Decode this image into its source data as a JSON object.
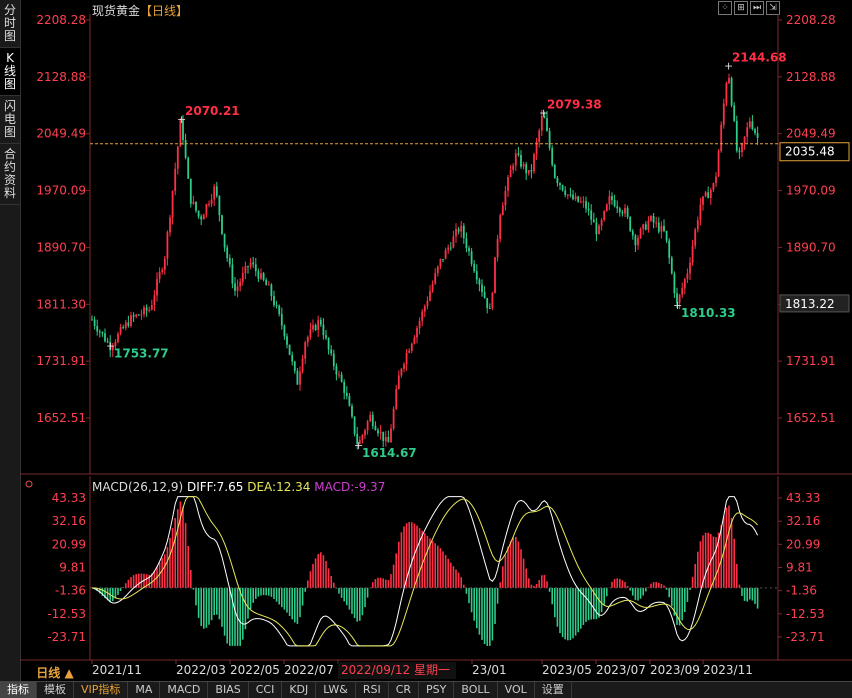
{
  "sidebar": {
    "tabs": [
      {
        "label": "分时图",
        "active": false
      },
      {
        "label": "K线图",
        "active": true
      },
      {
        "label": "闪电图",
        "active": false
      },
      {
        "label": "合约资料",
        "active": false
      }
    ]
  },
  "header": {
    "instrument": "现货黄金",
    "period_tag": "【日线】"
  },
  "window_controls": [
    "⁘",
    "⊞",
    "⏭",
    "⇲"
  ],
  "main_chart": {
    "y_ticks": [
      "2208.28",
      "2128.88",
      "2049.49",
      "1970.09",
      "1890.70",
      "1811.30",
      "1731.91",
      "1652.51"
    ],
    "y_tick_values": [
      2208.28,
      2128.88,
      2049.49,
      1970.09,
      1890.7,
      1811.3,
      1731.91,
      1652.51
    ],
    "current_price": "2035.48",
    "cursor_price": "1813.22",
    "annotations": [
      {
        "text": "1753.77",
        "value": 1753.77,
        "kind": "low"
      },
      {
        "text": "2070.21",
        "value": 2070.21,
        "kind": "high"
      },
      {
        "text": "1614.67",
        "value": 1614.67,
        "kind": "low"
      },
      {
        "text": "2079.38",
        "value": 2079.38,
        "kind": "high"
      },
      {
        "text": "1810.33",
        "value": 1810.33,
        "kind": "low"
      },
      {
        "text": "2144.68",
        "value": 2144.68,
        "kind": "high"
      }
    ]
  },
  "macd_panel": {
    "legend": {
      "name": "MACD(26,12,9)",
      "diff": "DIFF:7.65",
      "dea": "DEA:12.34",
      "macd": "MACD:-9.37"
    },
    "y_ticks": [
      "43.33",
      "32.16",
      "20.99",
      "9.81",
      "-1.36",
      "-12.53",
      "-23.71"
    ],
    "y_tick_values": [
      43.33,
      32.16,
      20.99,
      9.81,
      -1.36,
      -12.53,
      -23.71
    ]
  },
  "x_axis": {
    "period_label": "日线 ▲",
    "ticks": [
      "2021/11",
      "2022/03",
      "2022/05",
      "2022/07",
      "2022/09/12 星期一",
      "23/01",
      "2023/05",
      "2023/07",
      "2023/09",
      "2023/11"
    ]
  },
  "bottom_tabs": [
    "指标",
    "模板",
    "VIP指标",
    "MA",
    "MACD",
    "BIAS",
    "CCI",
    "KDJ",
    "LW&",
    "RSI",
    "CR",
    "PSY",
    "BOLL",
    "VOL",
    "设置"
  ],
  "colors": {
    "up": "#ff3045",
    "down": "#2ecc8a",
    "diff": "#ffffff",
    "dea": "#e8e85a",
    "macd": "#d040d0",
    "axis": "#ff4050",
    "orange": "#e8a33a"
  },
  "chart_data": {
    "type": "candlestick",
    "title": "现货黄金【日线】",
    "x_range": [
      "2021/10",
      "2023/12"
    ],
    "key_points": [
      {
        "date": "2021/11",
        "value": 1753.77,
        "label": "1753.77"
      },
      {
        "date": "2022/03",
        "value": 2070.21,
        "label": "2070.21"
      },
      {
        "date": "2022/09",
        "value": 1614.67,
        "label": "1614.67"
      },
      {
        "date": "2023/05",
        "value": 2079.38,
        "label": "2079.38"
      },
      {
        "date": "2023/10",
        "value": 1810.33,
        "label": "1810.33"
      },
      {
        "date": "2023/12",
        "value": 2144.68,
        "label": "2144.68"
      }
    ],
    "last_price": 2035.48,
    "ylim": [
      1600,
      2230
    ],
    "macd": {
      "params": "26,12,9",
      "diff": 7.65,
      "dea": 12.34,
      "macd": -9.37,
      "ylim": [
        -30,
        46
      ]
    }
  }
}
